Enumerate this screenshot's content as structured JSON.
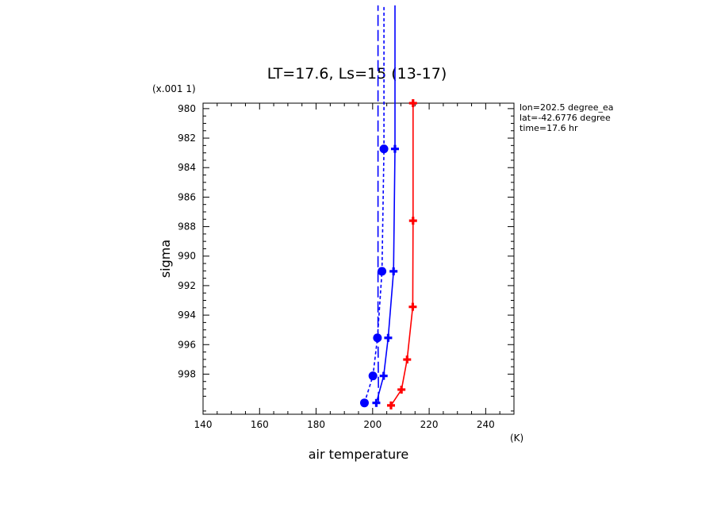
{
  "chart_data": {
    "type": "line",
    "title": "LT=17.6, Ls=15 (13-17)",
    "xlabel": "air temperature",
    "ylabel": "sigma",
    "x_unit_label": "(K)",
    "y_scale_label": "(x.001 1)",
    "xlim": [
      140,
      250
    ],
    "ylim": [
      979.63,
      1000.72
    ],
    "y_inverted": true,
    "x_ticks": [
      140,
      160,
      180,
      200,
      220,
      240
    ],
    "y_ticks": [
      980,
      982,
      984,
      986,
      988,
      990,
      992,
      994,
      996,
      998
    ],
    "annotations": [
      "lon=202.5 degree_ea",
      "lat=-42.6776 degree",
      "time=17.6 hr"
    ],
    "series": [
      {
        "color": "#ff0000",
        "dash": "solid",
        "marker": "plus",
        "points": [
          [
            206.5,
            1000.12
          ],
          [
            210.2,
            999.05
          ],
          [
            212.2,
            997.01
          ],
          [
            214.2,
            993.44
          ],
          [
            214.3,
            987.6
          ],
          [
            214.3,
            979.63
          ]
        ]
      },
      {
        "color": "#0000ff",
        "dash": "solid",
        "marker": "plus",
        "points": [
          [
            201.3,
            999.95
          ],
          [
            203.9,
            998.12
          ],
          [
            205.5,
            995.54
          ],
          [
            207.4,
            991.03
          ],
          [
            207.9,
            982.73
          ],
          [
            207.9,
            973.0
          ]
        ]
      },
      {
        "color": "#0000ff",
        "dash": "short-dash",
        "marker": "circle",
        "points": [
          [
            197.1,
            999.95
          ],
          [
            200.1,
            998.12
          ],
          [
            201.7,
            995.54
          ],
          [
            203.3,
            991.03
          ],
          [
            204.0,
            982.73
          ],
          [
            204.0,
            973.0
          ]
        ]
      },
      {
        "color": "#0000ff",
        "dash": "long-dash",
        "marker": "none",
        "points": [
          [
            202.1,
            999.95
          ],
          [
            201.9,
            995.54
          ],
          [
            201.9,
            991.03
          ],
          [
            201.9,
            982.73
          ],
          [
            201.9,
            973.0
          ]
        ]
      }
    ]
  }
}
